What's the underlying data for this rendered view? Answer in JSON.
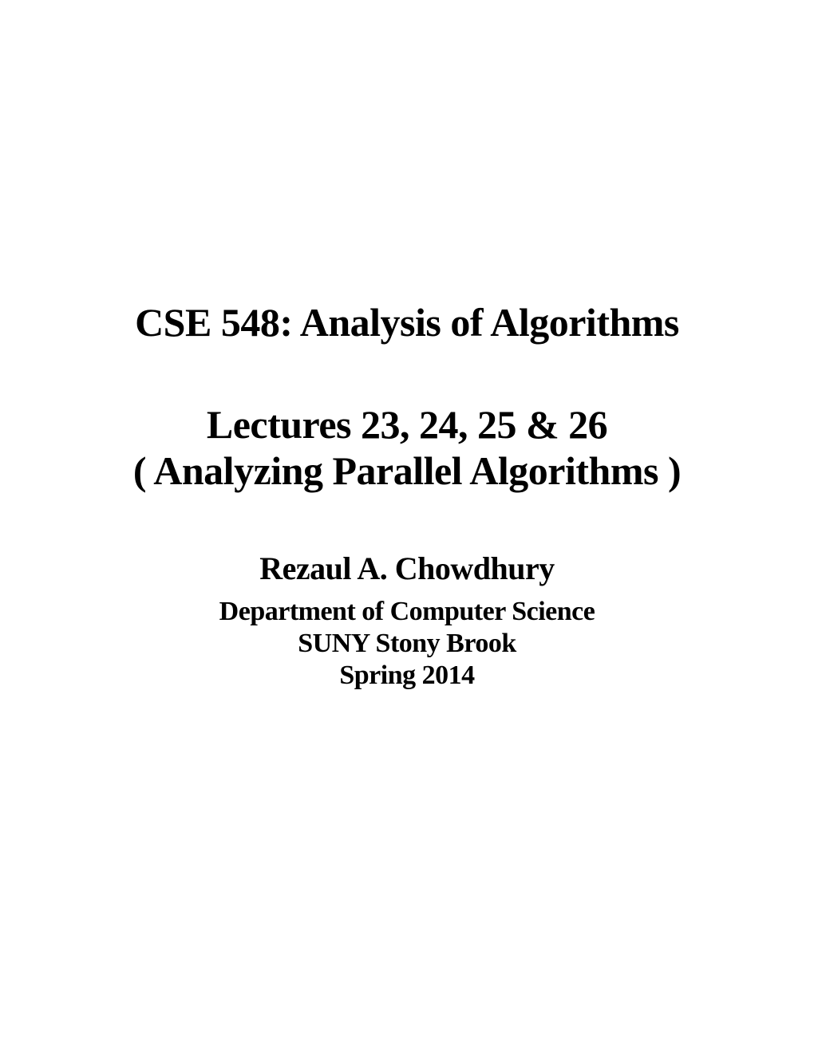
{
  "slide": {
    "course_title": "CSE 548: Analysis of Algorithms",
    "lecture_line_1": "Lectures 23, 24, 25 & 26",
    "lecture_line_2": "( Analyzing Parallel Algorithms )",
    "author": "Rezaul A. Chowdhury",
    "department": "Department of Computer Science",
    "institution": "SUNY Stony Brook",
    "semester": "Spring 2014",
    "background_color": "#ffffff",
    "text_color": "#000000",
    "title_fontsize": 50,
    "author_fontsize": 40,
    "detail_fontsize": 34,
    "font_family": "Georgia, serif"
  }
}
